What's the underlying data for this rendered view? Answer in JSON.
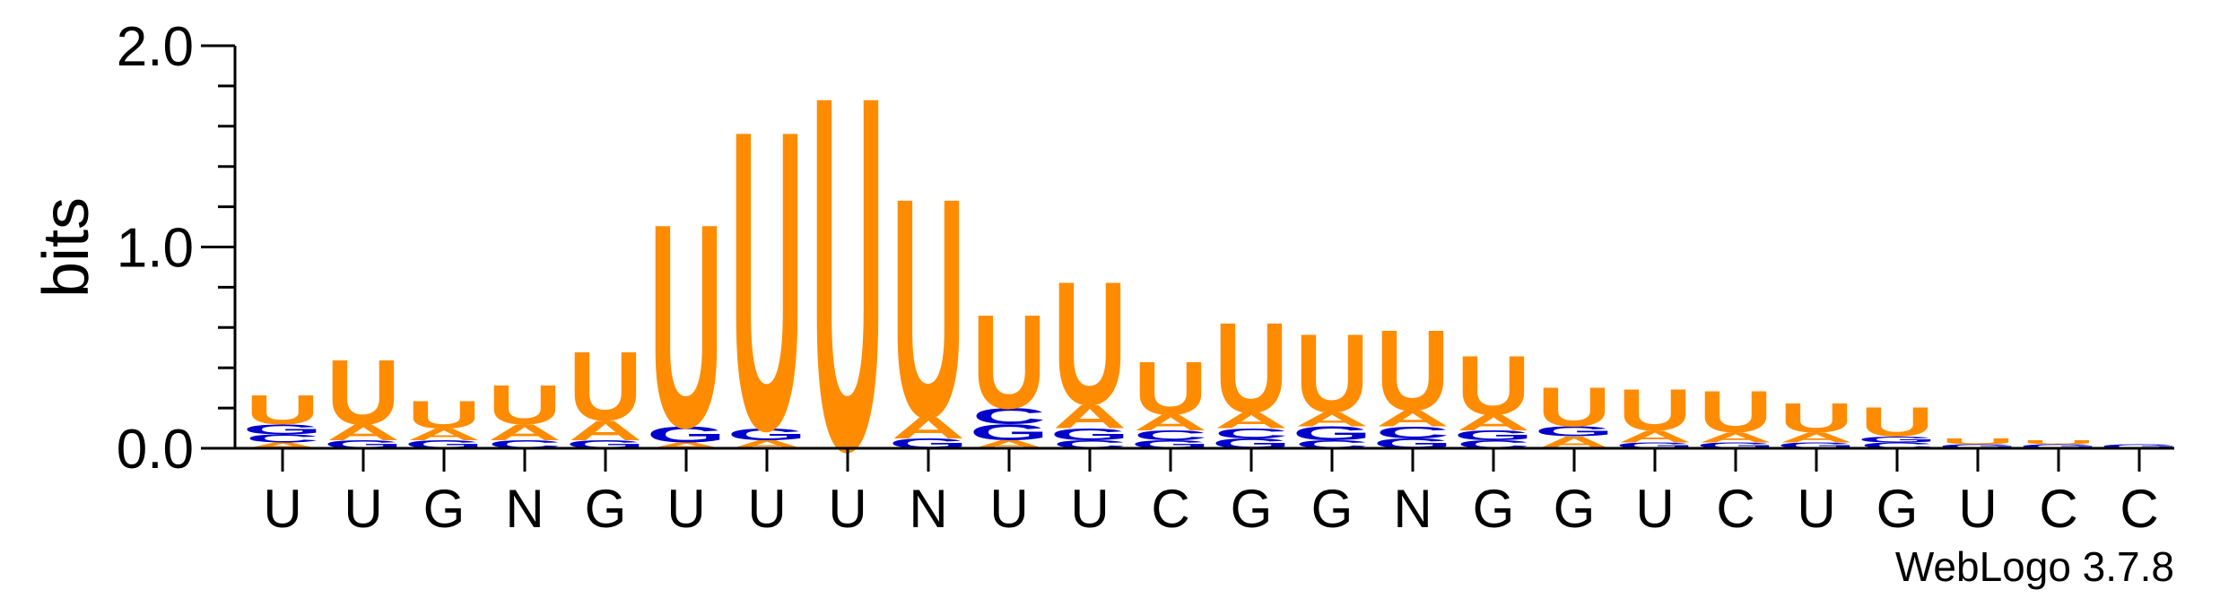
{
  "chart_data": {
    "type": "sequence-logo",
    "ylabel": "bits",
    "ylim": [
      0,
      2.0
    ],
    "yticks": [
      "0.0",
      "1.0",
      "2.0"
    ],
    "colors": {
      "U": "#ff8c00",
      "A": "#ff8c00",
      "G": "#0000cc",
      "C": "#0000cc"
    },
    "positions": [
      {
        "label": "U",
        "stack": [
          [
            "A",
            0.03
          ],
          [
            "C",
            0.04
          ],
          [
            "G",
            0.05
          ],
          [
            "U",
            0.15
          ]
        ]
      },
      {
        "label": "U",
        "stack": [
          [
            "G",
            0.04
          ],
          [
            "A",
            0.08
          ],
          [
            "U",
            0.33
          ]
        ]
      },
      {
        "label": "G",
        "stack": [
          [
            "G",
            0.04
          ],
          [
            "A",
            0.06
          ],
          [
            "U",
            0.14
          ]
        ]
      },
      {
        "label": "N",
        "stack": [
          [
            "C",
            0.04
          ],
          [
            "A",
            0.08
          ],
          [
            "U",
            0.2
          ]
        ]
      },
      {
        "label": "G",
        "stack": [
          [
            "G",
            0.04
          ],
          [
            "A",
            0.1
          ],
          [
            "U",
            0.35
          ]
        ]
      },
      {
        "label": "U",
        "stack": [
          [
            "A",
            0.03
          ],
          [
            "G",
            0.08
          ],
          [
            "U",
            1.04
          ]
        ]
      },
      {
        "label": "U",
        "stack": [
          [
            "A",
            0.04
          ],
          [
            "G",
            0.06
          ],
          [
            "U",
            1.53
          ]
        ]
      },
      {
        "label": "U",
        "stack": [
          [
            "U",
            1.81
          ]
        ]
      },
      {
        "label": "N",
        "stack": [
          [
            "G",
            0.05
          ],
          [
            "A",
            0.11
          ],
          [
            "U",
            1.12
          ]
        ]
      },
      {
        "label": "U",
        "stack": [
          [
            "A",
            0.04
          ],
          [
            "G",
            0.08
          ],
          [
            "C",
            0.08
          ],
          [
            "U",
            0.48
          ]
        ]
      },
      {
        "label": "U",
        "stack": [
          [
            "C",
            0.04
          ],
          [
            "G",
            0.06
          ],
          [
            "A",
            0.12
          ],
          [
            "U",
            0.63
          ]
        ]
      },
      {
        "label": "C",
        "stack": [
          [
            "G",
            0.04
          ],
          [
            "C",
            0.05
          ],
          [
            "A",
            0.08
          ],
          [
            "U",
            0.27
          ]
        ]
      },
      {
        "label": "G",
        "stack": [
          [
            "G",
            0.05
          ],
          [
            "C",
            0.05
          ],
          [
            "A",
            0.08
          ],
          [
            "U",
            0.46
          ]
        ]
      },
      {
        "label": "G",
        "stack": [
          [
            "C",
            0.04
          ],
          [
            "G",
            0.07
          ],
          [
            "A",
            0.07
          ],
          [
            "U",
            0.4
          ]
        ]
      },
      {
        "label": "N",
        "stack": [
          [
            "G",
            0.05
          ],
          [
            "C",
            0.06
          ],
          [
            "A",
            0.08
          ],
          [
            "U",
            0.41
          ]
        ]
      },
      {
        "label": "G",
        "stack": [
          [
            "C",
            0.04
          ],
          [
            "G",
            0.05
          ],
          [
            "A",
            0.08
          ],
          [
            "U",
            0.3
          ]
        ]
      },
      {
        "label": "G",
        "stack": [
          [
            "A",
            0.06
          ],
          [
            "G",
            0.05
          ],
          [
            "U",
            0.2
          ]
        ]
      },
      {
        "label": "U",
        "stack": [
          [
            "G",
            0.03
          ],
          [
            "A",
            0.06
          ],
          [
            "U",
            0.21
          ]
        ]
      },
      {
        "label": "C",
        "stack": [
          [
            "G",
            0.03
          ],
          [
            "A",
            0.05
          ],
          [
            "U",
            0.21
          ]
        ]
      },
      {
        "label": "U",
        "stack": [
          [
            "G",
            0.03
          ],
          [
            "A",
            0.05
          ],
          [
            "U",
            0.15
          ]
        ]
      },
      {
        "label": "G",
        "stack": [
          [
            "C",
            0.03
          ],
          [
            "G",
            0.03
          ],
          [
            "U",
            0.15
          ]
        ]
      },
      {
        "label": "U",
        "stack": [
          [
            "G",
            0.02
          ],
          [
            "U",
            0.03
          ]
        ]
      },
      {
        "label": "C",
        "stack": [
          [
            "G",
            0.02
          ],
          [
            "U",
            0.02
          ]
        ]
      },
      {
        "label": "C",
        "stack": [
          [
            "G",
            0.02
          ]
        ]
      }
    ]
  },
  "credit": "WebLogo 3.7.8"
}
